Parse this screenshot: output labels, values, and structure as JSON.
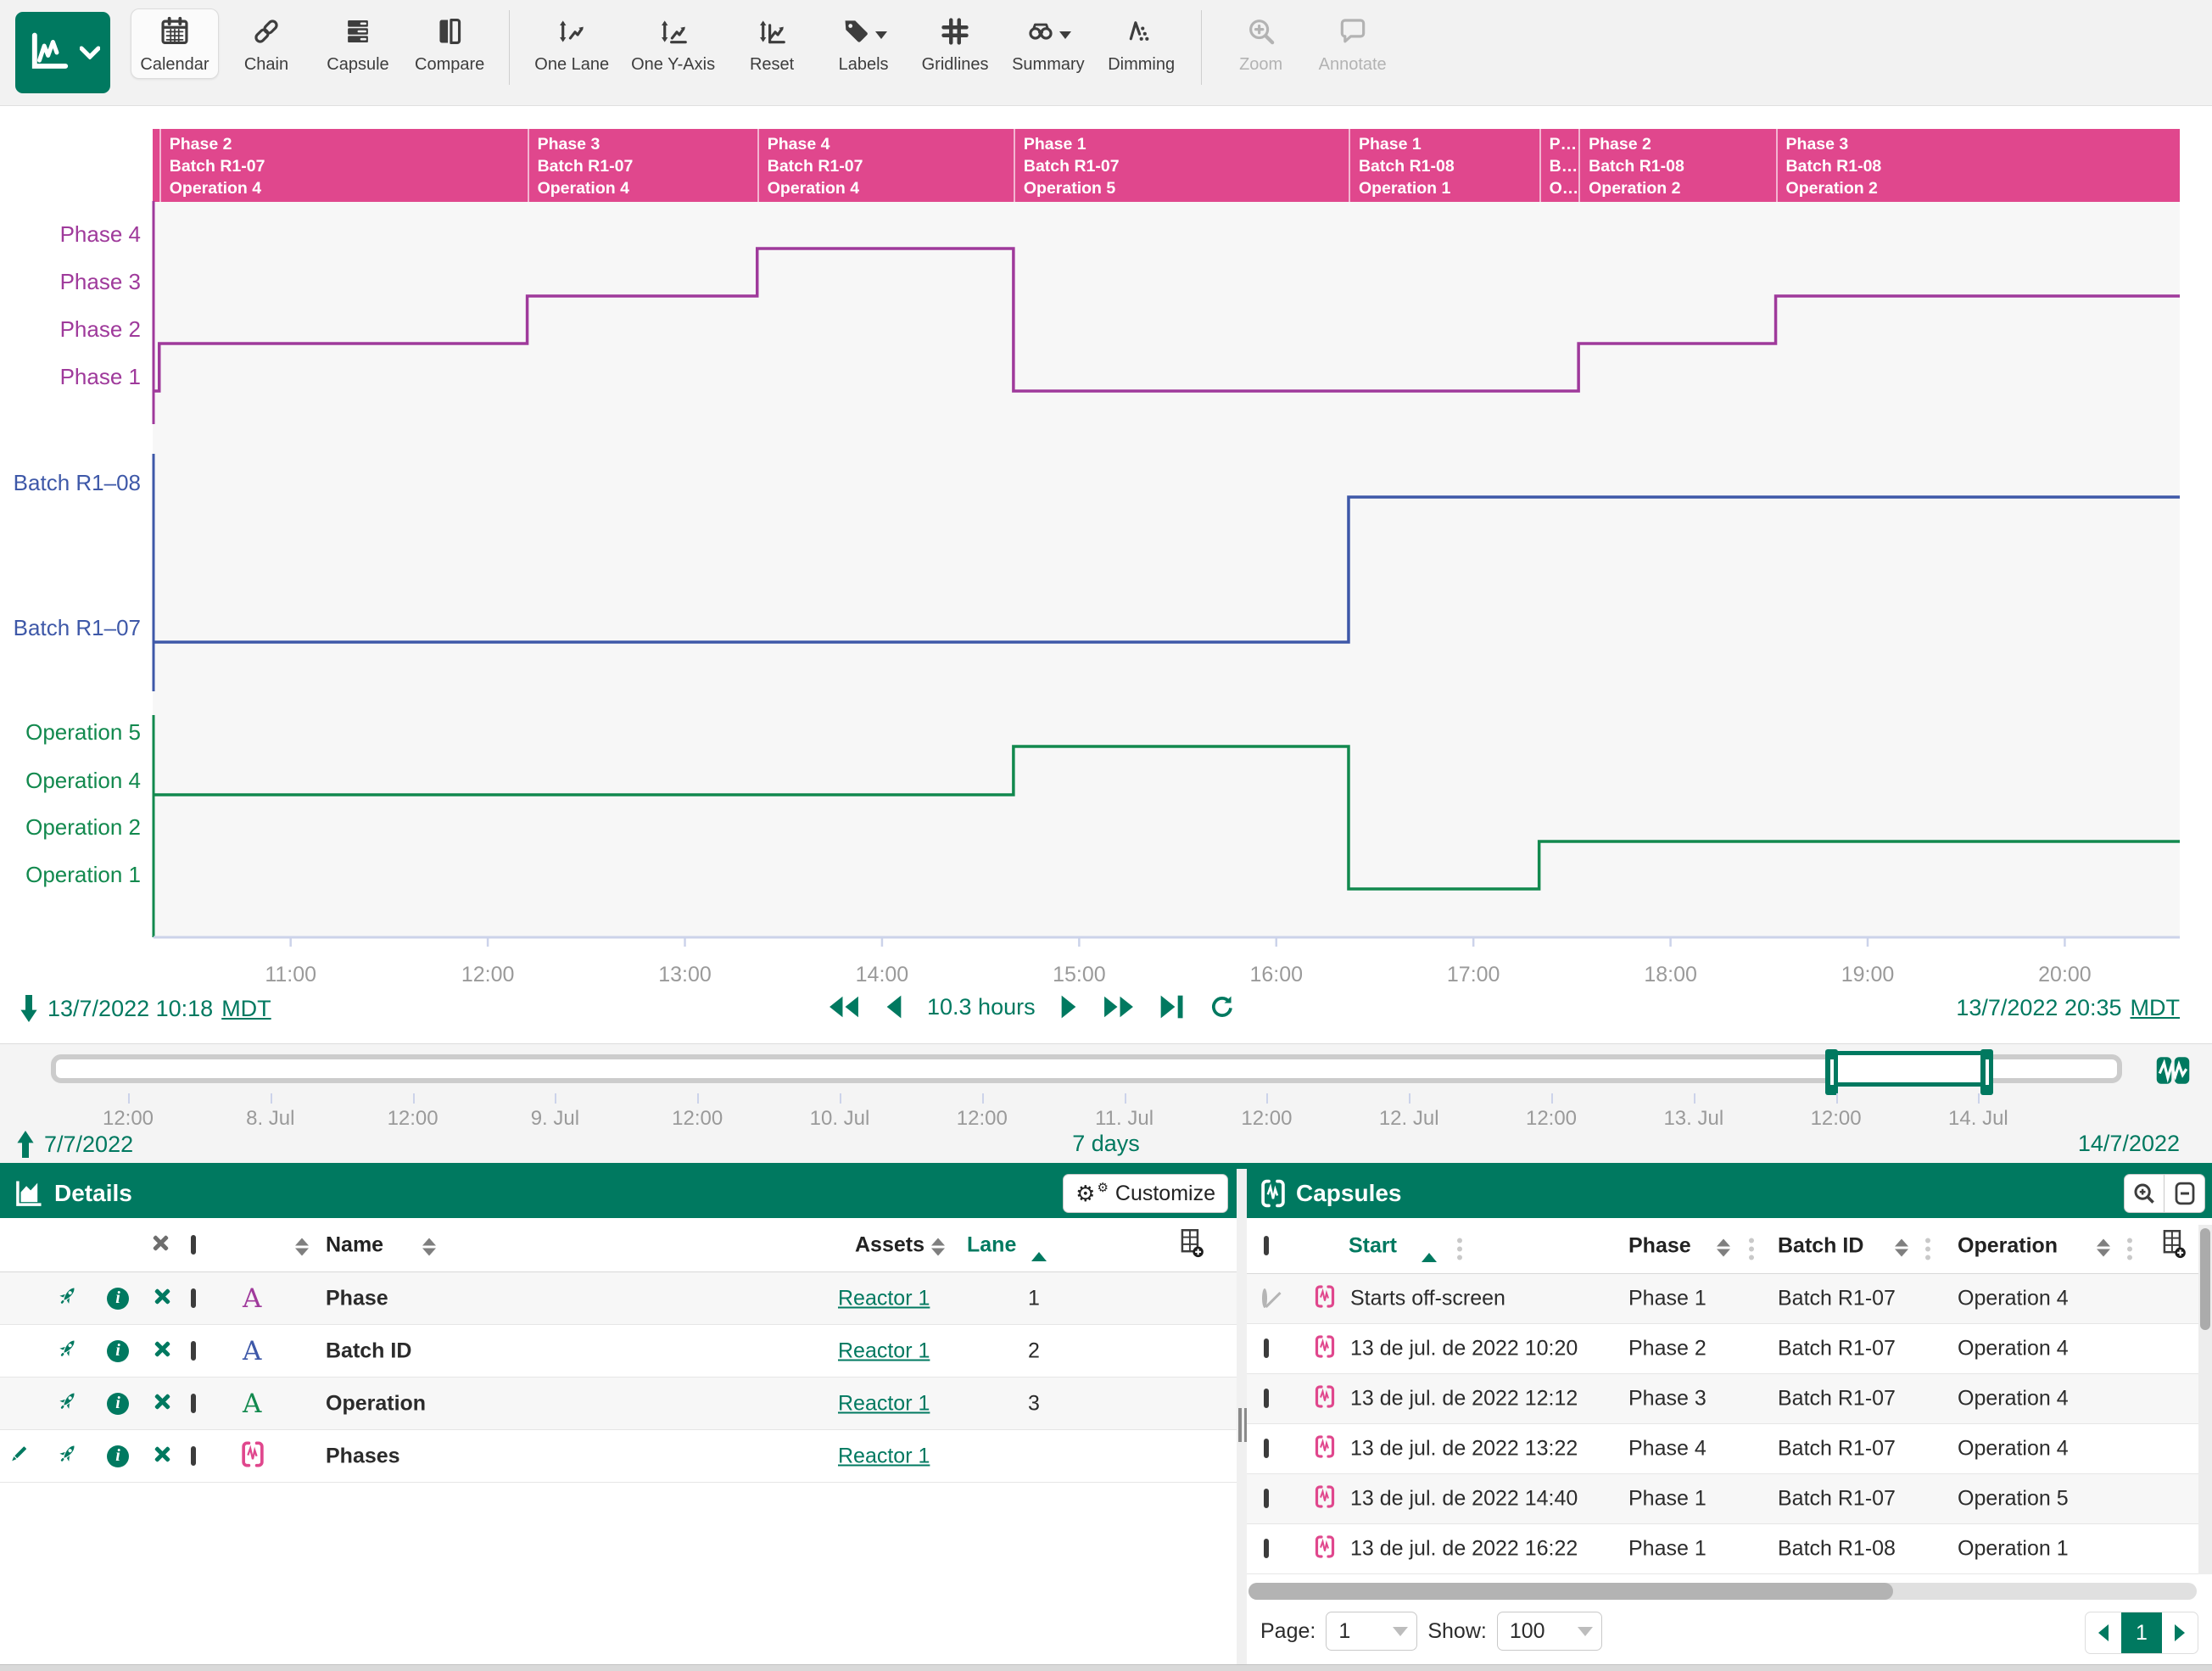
{
  "app": {
    "accent_green": "#007960",
    "capsule_pink": "#E0478D"
  },
  "toolbar": {
    "buttons": [
      {
        "id": "calendar",
        "label": "Calendar",
        "active": true
      },
      {
        "id": "chain",
        "label": "Chain"
      },
      {
        "id": "capsule",
        "label": "Capsule"
      },
      {
        "id": "compare",
        "label": "Compare"
      },
      {
        "id": "sep"
      },
      {
        "id": "one-lane",
        "label": "One Lane"
      },
      {
        "id": "one-y-axis",
        "label": "One Y-Axis"
      },
      {
        "id": "reset",
        "label": "Reset"
      },
      {
        "id": "labels",
        "label": "Labels",
        "caret": true
      },
      {
        "id": "gridlines",
        "label": "Gridlines"
      },
      {
        "id": "summary",
        "label": "Summary",
        "caret": true
      },
      {
        "id": "dimming",
        "label": "Dimming"
      },
      {
        "id": "sep"
      },
      {
        "id": "zoom",
        "label": "Zoom",
        "disabled": true
      },
      {
        "id": "annotate",
        "label": "Annotate",
        "disabled": true
      }
    ]
  },
  "chart": {
    "time_range": {
      "start_time": "10:18",
      "end_time": "20:35",
      "start_label": "13/7/2022 10:18",
      "start_tz": "MDT",
      "end_label": "13/7/2022 20:35",
      "end_tz": "MDT",
      "duration_label": "10.3 hours"
    },
    "x_axis": {
      "ticks": [
        "11:00",
        "12:00",
        "13:00",
        "14:00",
        "15:00",
        "16:00",
        "17:00",
        "18:00",
        "19:00",
        "20:00"
      ]
    },
    "capsule_bar": [
      {
        "start": "10:18",
        "end": "10:20",
        "lines": []
      },
      {
        "start": "10:20",
        "end": "12:12",
        "lines": [
          "Phase 2",
          "Batch R1-07",
          "Operation 4"
        ]
      },
      {
        "start": "12:12",
        "end": "13:22",
        "lines": [
          "Phase 3",
          "Batch R1-07",
          "Operation 4"
        ]
      },
      {
        "start": "13:22",
        "end": "14:40",
        "lines": [
          "Phase 4",
          "Batch R1-07",
          "Operation 4"
        ]
      },
      {
        "start": "14:40",
        "end": "16:22",
        "lines": [
          "Phase 1",
          "Batch R1-07",
          "Operation 5"
        ]
      },
      {
        "start": "16:22",
        "end": "17:20",
        "lines": [
          "Phase 1",
          "Batch R1-08",
          "Operation 1"
        ]
      },
      {
        "start": "17:20",
        "end": "17:32",
        "lines": [
          "P…",
          "B…",
          "O…"
        ]
      },
      {
        "start": "17:32",
        "end": "18:32",
        "lines": [
          "Phase 2",
          "Batch R1-08",
          "Operation 2"
        ]
      },
      {
        "start": "18:32",
        "end": "20:35",
        "lines": [
          "Phase 3",
          "Batch R1-08",
          "Operation 2"
        ]
      }
    ],
    "chart_data": "see lanes",
    "lanes": [
      {
        "id": "phase",
        "color": "#9F3A9B",
        "type": "step",
        "categories": [
          "Phase 4",
          "Phase 3",
          "Phase 2",
          "Phase 1"
        ],
        "segments": [
          {
            "start": "10:18",
            "end": "10:20",
            "cat": "Phase 1"
          },
          {
            "start": "10:20",
            "end": "12:12",
            "cat": "Phase 2"
          },
          {
            "start": "12:12",
            "end": "13:22",
            "cat": "Phase 3"
          },
          {
            "start": "13:22",
            "end": "14:40",
            "cat": "Phase 4"
          },
          {
            "start": "14:40",
            "end": "17:32",
            "cat": "Phase 1"
          },
          {
            "start": "17:32",
            "end": "18:32",
            "cat": "Phase 2"
          },
          {
            "start": "18:32",
            "end": "20:35",
            "cat": "Phase 3"
          }
        ]
      },
      {
        "id": "batch",
        "color": "#3E58A8",
        "type": "step",
        "categories": [
          "Batch R1–08",
          "Batch R1–07"
        ],
        "segments": [
          {
            "start": "10:18",
            "end": "16:22",
            "cat": "Batch R1–07"
          },
          {
            "start": "16:22",
            "end": "20:35",
            "cat": "Batch R1–08"
          }
        ]
      },
      {
        "id": "operation",
        "color": "#12894E",
        "type": "step",
        "categories": [
          "Operation 5",
          "Operation 4",
          "Operation 2",
          "Operation 1"
        ],
        "segments": [
          {
            "start": "10:18",
            "end": "14:40",
            "cat": "Operation 4"
          },
          {
            "start": "14:40",
            "end": "16:22",
            "cat": "Operation 5"
          },
          {
            "start": "16:22",
            "end": "17:20",
            "cat": "Operation 1"
          },
          {
            "start": "17:20",
            "end": "20:35",
            "cat": "Operation 2"
          }
        ]
      }
    ]
  },
  "scrubber": {
    "ticks": [
      "12:00",
      "8. Jul",
      "12:00",
      "9. Jul",
      "12:00",
      "10. Jul",
      "12:00",
      "11. Jul",
      "12:00",
      "12. Jul",
      "12:00",
      "13. Jul",
      "12:00",
      "14. Jul"
    ],
    "start_date": "7/7/2022",
    "range_label": "7 days",
    "end_date": "14/7/2022"
  },
  "details": {
    "title": "Details",
    "customize_label": "Customize",
    "columns": {
      "name": "Name",
      "assets": "Assets",
      "lane": "Lane"
    },
    "rows": [
      {
        "icon": "letter",
        "color": "#9F3A9B",
        "name": "Phase",
        "asset": "Reactor 1",
        "lane": "1"
      },
      {
        "icon": "letter",
        "color": "#3E58A8",
        "name": "Batch ID",
        "asset": "Reactor 1",
        "lane": "2"
      },
      {
        "icon": "letter",
        "color": "#12894E",
        "name": "Operation",
        "asset": "Reactor 1",
        "lane": "3"
      },
      {
        "icon": "capsule",
        "color": "#E0478D",
        "name": "Phases",
        "asset": "Reactor 1",
        "lane": "",
        "editable": true
      }
    ]
  },
  "capsules": {
    "title": "Capsules",
    "columns": {
      "start": "Start",
      "phase": "Phase",
      "batch": "Batch ID",
      "operation": "Operation"
    },
    "rows": [
      {
        "start": "Starts off-screen",
        "phase": "Phase 1",
        "batch": "Batch R1-07",
        "operation": "Operation 4",
        "offscreen": true
      },
      {
        "start": "13 de jul. de 2022 10:20",
        "phase": "Phase 2",
        "batch": "Batch R1-07",
        "operation": "Operation 4"
      },
      {
        "start": "13 de jul. de 2022 12:12",
        "phase": "Phase 3",
        "batch": "Batch R1-07",
        "operation": "Operation 4"
      },
      {
        "start": "13 de jul. de 2022 13:22",
        "phase": "Phase 4",
        "batch": "Batch R1-07",
        "operation": "Operation 4"
      },
      {
        "start": "13 de jul. de 2022 14:40",
        "phase": "Phase 1",
        "batch": "Batch R1-07",
        "operation": "Operation 5"
      },
      {
        "start": "13 de jul. de 2022 16:22",
        "phase": "Phase 1",
        "batch": "Batch R1-08",
        "operation": "Operation 1"
      }
    ],
    "pagination": {
      "page_label": "Page:",
      "page_value": "1",
      "show_label": "Show:",
      "show_value": "100",
      "current_page": "1"
    }
  }
}
